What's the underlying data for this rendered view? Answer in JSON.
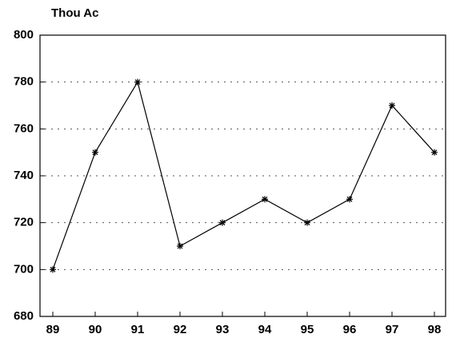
{
  "chart_data": {
    "type": "line",
    "ylabel": "Thou Ac",
    "categories": [
      "89",
      "90",
      "91",
      "92",
      "93",
      "94",
      "95",
      "96",
      "97",
      "98"
    ],
    "values": [
      700,
      750,
      780,
      710,
      720,
      730,
      720,
      730,
      770,
      750
    ],
    "color": "#000000",
    "ylim": [
      680,
      800
    ],
    "yticks": [
      680,
      700,
      720,
      740,
      760,
      780,
      800
    ],
    "grid": true
  }
}
